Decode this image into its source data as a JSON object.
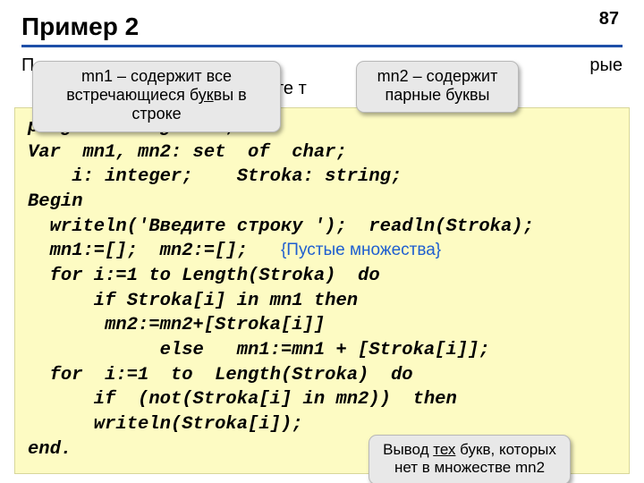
{
  "page_number": "87",
  "title": "Пример 2",
  "subtitle_left_fragment": "П",
  "subtitle_right_fragment": "рые",
  "subtitle_line2_fragment": "те т",
  "callouts": {
    "c1": {
      "pre": "mn1 – содержит все\nвстречающиеся б",
      "u": "ук",
      "post": "вы в строке"
    },
    "c2": {
      "text": "mn2 – содержит\nпарные буквы"
    },
    "c3": {
      "pre": "Вывод ",
      "u": "тех",
      "post": " букв, которых\nнет в множестве mn2"
    }
  },
  "code": {
    "l1": "program  mnogestvo;",
    "l2": "Var  mn1, mn2: set  of  char;",
    "l3": "    i: integer;    Stroka: string;",
    "l4": "Begin",
    "l5": "  writeln('Введите строку ');  readln(Stroka);",
    "l6a": "  mn1:=[];  mn2:=[];   ",
    "l6c": "{Пустые множества}",
    "l7": "  for i:=1 to Length(Stroka)  do",
    "l8": "      if Stroka[i] in mn1 then",
    "l9": "       mn2:=mn2+[Stroka[i]]",
    "l10": "            else   mn1:=mn1 + [Stroka[i]];",
    "l11": "  for  i:=1  to  Length(Stroka)  do",
    "l12": "      if  (not(Stroka[i] in mn2))  then",
    "l13": "      writeln(Stroka[i]);",
    "l14": "end."
  },
  "colors": {
    "rule": "#1d4fa8",
    "code_bg": "#fdfbc3",
    "callout_bg": "#e8e8e8",
    "comment": "#1f5fd0"
  }
}
